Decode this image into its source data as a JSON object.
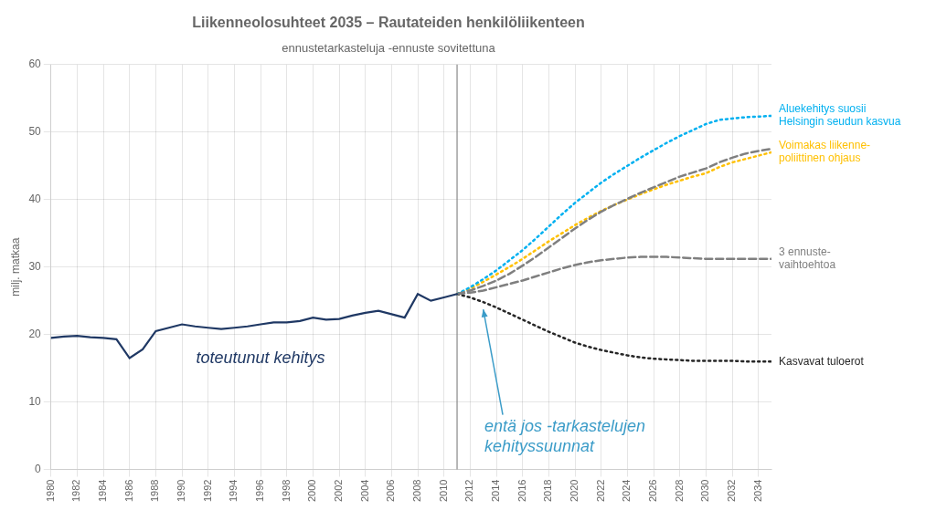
{
  "chart_data": {
    "type": "line",
    "title": "Liikenneolosuhteet 2035 – Rautateiden henkilöliikenteen",
    "subtitle": "ennustetarkasteluja -ennuste sovitettuna",
    "y_label": "milj. matkaa",
    "xlim": [
      1980,
      2035
    ],
    "xticks": [
      1980,
      1982,
      1984,
      1986,
      1988,
      1990,
      1992,
      1994,
      1996,
      1998,
      2000,
      2002,
      2004,
      2006,
      2008,
      2010,
      2012,
      2014,
      2016,
      2018,
      2020,
      2022,
      2024,
      2026,
      2028,
      2030,
      2032,
      2034
    ],
    "ylim": [
      0,
      60
    ],
    "yticks": [
      0,
      10,
      20,
      30,
      40,
      50,
      60
    ],
    "grid": true,
    "series": [
      {
        "x": [
          1980,
          1981,
          1982,
          1983,
          1984,
          1985,
          1986,
          1987,
          1988,
          1989,
          1990,
          1991,
          1992,
          1993,
          1994,
          1995,
          1996,
          1997,
          1998,
          1999,
          2000,
          2001,
          2002,
          2003,
          2004,
          2005,
          2006,
          2007,
          2008,
          2009,
          2010,
          2011
        ],
        "values": [
          19.5,
          19.7,
          19.8,
          19.6,
          19.5,
          19.3,
          16.5,
          17.8,
          20.5,
          21.0,
          21.5,
          21.2,
          21.0,
          20.8,
          21.0,
          21.2,
          21.5,
          21.8,
          21.8,
          22.0,
          22.5,
          22.2,
          22.3,
          22.8,
          23.2,
          23.5,
          23.0,
          22.5,
          26.0,
          25.0,
          25.5,
          26.0
        ],
        "color": "#1F3864",
        "line_style": "solid",
        "label": "toteutunut kehitys"
      },
      {
        "x": [
          2011,
          2012,
          2013,
          2014,
          2015,
          2016,
          2017,
          2018,
          2019,
          2020,
          2021,
          2022,
          2023,
          2024,
          2025,
          2026,
          2027,
          2028,
          2029,
          2030,
          2031,
          2032,
          2033,
          2034,
          2035
        ],
        "values": [
          26.0,
          26.5,
          27.2,
          28.0,
          29.0,
          30.2,
          31.5,
          32.9,
          34.3,
          35.7,
          37.0,
          38.2,
          39.2,
          40.1,
          41.0,
          41.8,
          42.6,
          43.4,
          44.0,
          44.6,
          45.5,
          46.2,
          46.8,
          47.2,
          47.5
        ],
        "color": "#7F7F7F",
        "line_style": "dashed"
      },
      {
        "x": [
          2011,
          2012,
          2013,
          2014,
          2015,
          2016,
          2017,
          2018,
          2019,
          2020,
          2021,
          2022,
          2023,
          2024,
          2025,
          2026,
          2027,
          2028,
          2029,
          2030,
          2031,
          2032,
          2033,
          2034,
          2035
        ],
        "values": [
          26.0,
          26.2,
          26.5,
          27.0,
          27.5,
          28.0,
          28.6,
          29.2,
          29.8,
          30.3,
          30.7,
          31.0,
          31.2,
          31.4,
          31.5,
          31.5,
          31.5,
          31.4,
          31.3,
          31.2,
          31.2,
          31.2,
          31.2,
          31.2,
          31.2
        ],
        "color": "#7F7F7F",
        "line_style": "dashed",
        "label": "3 ennuste-\nvaihtoehtoa"
      },
      {
        "x": [
          2011,
          2012,
          2013,
          2014,
          2015,
          2016,
          2017,
          2018,
          2019,
          2020,
          2021,
          2022,
          2023,
          2024,
          2025,
          2026,
          2027,
          2028,
          2029,
          2030,
          2031,
          2032,
          2033,
          2034,
          2035
        ],
        "values": [
          26.0,
          27.0,
          28.2,
          29.5,
          31.0,
          32.5,
          34.2,
          36.0,
          37.8,
          39.5,
          41.0,
          42.5,
          43.8,
          45.0,
          46.2,
          47.3,
          48.4,
          49.4,
          50.3,
          51.2,
          51.8,
          52.0,
          52.2,
          52.3,
          52.4
        ],
        "color": "#00B0F0",
        "line_style": "dotted",
        "label": "Aluekehitys suosii\nHelsingin seudun kasvua"
      },
      {
        "x": [
          2011,
          2012,
          2013,
          2014,
          2015,
          2016,
          2017,
          2018,
          2019,
          2020,
          2021,
          2022,
          2023,
          2024,
          2025,
          2026,
          2027,
          2028,
          2029,
          2030,
          2031,
          2032,
          2033,
          2034,
          2035
        ],
        "values": [
          26.0,
          26.8,
          27.8,
          28.9,
          30.0,
          31.2,
          32.5,
          33.8,
          35.0,
          36.2,
          37.3,
          38.3,
          39.2,
          40.0,
          40.8,
          41.5,
          42.2,
          42.8,
          43.4,
          43.9,
          44.8,
          45.5,
          46.0,
          46.5,
          47.0
        ],
        "color": "#FFC000",
        "line_style": "dotted",
        "label": "Voimakas liikenne-\npoliittinen ohjaus"
      },
      {
        "x": [
          2011,
          2012,
          2013,
          2014,
          2015,
          2016,
          2017,
          2018,
          2019,
          2020,
          2021,
          2022,
          2023,
          2024,
          2025,
          2026,
          2027,
          2028,
          2029,
          2030,
          2031,
          2032,
          2033,
          2034,
          2035
        ],
        "values": [
          26.0,
          25.5,
          24.8,
          24.0,
          23.1,
          22.2,
          21.3,
          20.4,
          19.6,
          18.8,
          18.2,
          17.7,
          17.3,
          16.9,
          16.6,
          16.4,
          16.3,
          16.2,
          16.1,
          16.1,
          16.1,
          16.1,
          16.0,
          16.0,
          16.0
        ],
        "color": "#262626",
        "line_style": "dotted",
        "label": "Kasvavat tuloerot"
      }
    ],
    "vlines": [
      {
        "x": 2011,
        "color": "#888888"
      }
    ],
    "annotations": [
      {
        "text": "entä jos -tarkastelujen\nkehityssuunnat",
        "color": "#3B9CC8",
        "arrow": true
      }
    ]
  }
}
